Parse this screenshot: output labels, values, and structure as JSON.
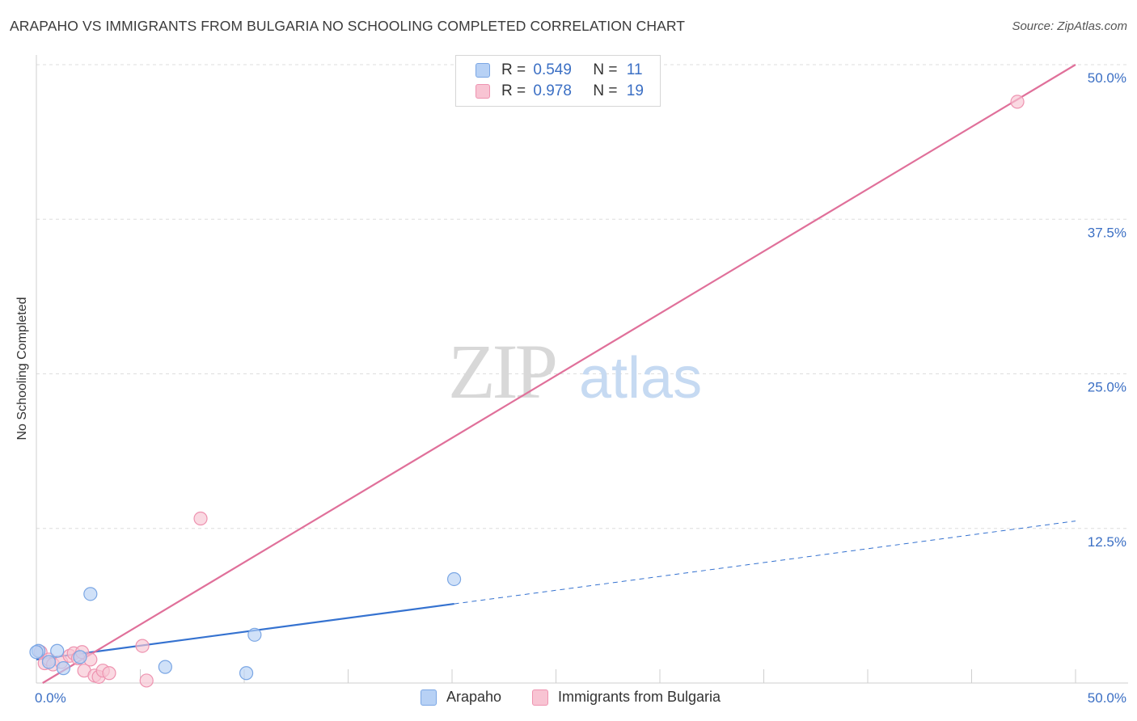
{
  "title": "ARAPAHO VS IMMIGRANTS FROM BULGARIA NO SCHOOLING COMPLETED CORRELATION CHART",
  "source": "Source: ZipAtlas.com",
  "watermark": {
    "zip": "ZIP",
    "atlas": "atlas"
  },
  "colors": {
    "arapaho_fill": "#b7d1f5",
    "arapaho_stroke": "#7aa6e4",
    "arapaho_line": "#3572d0",
    "bulgaria_fill": "#f8c4d3",
    "bulgaria_stroke": "#ee93b0",
    "bulgaria_line": "#e0709a",
    "tick_text": "#3b6fc4",
    "grid": "#dddddd"
  },
  "legend": {
    "rows": [
      {
        "r_label": "R =",
        "r_value": "0.549",
        "n_label": "N =",
        "n_value": "11"
      },
      {
        "r_label": "R =",
        "r_value": "0.978",
        "n_label": "N =",
        "n_value": "19"
      }
    ]
  },
  "chart_data": {
    "type": "scatter",
    "title": "ARAPAHO VS IMMIGRANTS FROM BULGARIA NO SCHOOLING COMPLETED CORRELATION CHART",
    "xlabel": "",
    "ylabel": "No Schooling Completed",
    "xlim": [
      0,
      50
    ],
    "ylim": [
      0,
      50
    ],
    "x_tick_labels": {
      "min": "0.0%",
      "max": "50.0%"
    },
    "y_ticks": [
      {
        "value": 12.5,
        "label": "12.5%"
      },
      {
        "value": 25.0,
        "label": "25.0%"
      },
      {
        "value": 37.5,
        "label": "37.5%"
      },
      {
        "value": 50.0,
        "label": "50.0%"
      }
    ],
    "series": [
      {
        "name": "Arapaho",
        "points": [
          {
            "x": 0.1,
            "y": 2.6
          },
          {
            "x": 0.6,
            "y": 1.7
          },
          {
            "x": 1.0,
            "y": 2.6
          },
          {
            "x": 1.3,
            "y": 1.2
          },
          {
            "x": 2.1,
            "y": 2.1
          },
          {
            "x": 2.6,
            "y": 7.2
          },
          {
            "x": 6.2,
            "y": 1.3
          },
          {
            "x": 10.1,
            "y": 0.8
          },
          {
            "x": 10.5,
            "y": 3.9
          },
          {
            "x": 20.1,
            "y": 8.4
          },
          {
            "x": 0.0,
            "y": 2.5
          }
        ],
        "trend": {
          "x0": 0,
          "y0": 1.9,
          "x1": 20.1,
          "y1": 6.4,
          "x_dash_end": 50,
          "y_dash_end": 13.1
        }
      },
      {
        "name": "Immigrants from Bulgaria",
        "points": [
          {
            "x": 0.2,
            "y": 2.5
          },
          {
            "x": 0.4,
            "y": 1.6
          },
          {
            "x": 0.6,
            "y": 1.9
          },
          {
            "x": 0.8,
            "y": 1.5
          },
          {
            "x": 1.2,
            "y": 1.7
          },
          {
            "x": 1.6,
            "y": 2.2
          },
          {
            "x": 1.8,
            "y": 2.4
          },
          {
            "x": 2.0,
            "y": 2.0
          },
          {
            "x": 2.2,
            "y": 2.5
          },
          {
            "x": 2.3,
            "y": 1.0
          },
          {
            "x": 2.6,
            "y": 1.9
          },
          {
            "x": 2.8,
            "y": 0.6
          },
          {
            "x": 3.0,
            "y": 0.5
          },
          {
            "x": 3.2,
            "y": 1.0
          },
          {
            "x": 3.5,
            "y": 0.8
          },
          {
            "x": 5.1,
            "y": 3.0
          },
          {
            "x": 5.3,
            "y": 0.2
          },
          {
            "x": 7.9,
            "y": 13.3
          },
          {
            "x": 47.2,
            "y": 47.0
          }
        ],
        "trend": {
          "x0": 0.3,
          "y0": 0.0,
          "x1": 50,
          "y1": 50
        }
      }
    ]
  }
}
